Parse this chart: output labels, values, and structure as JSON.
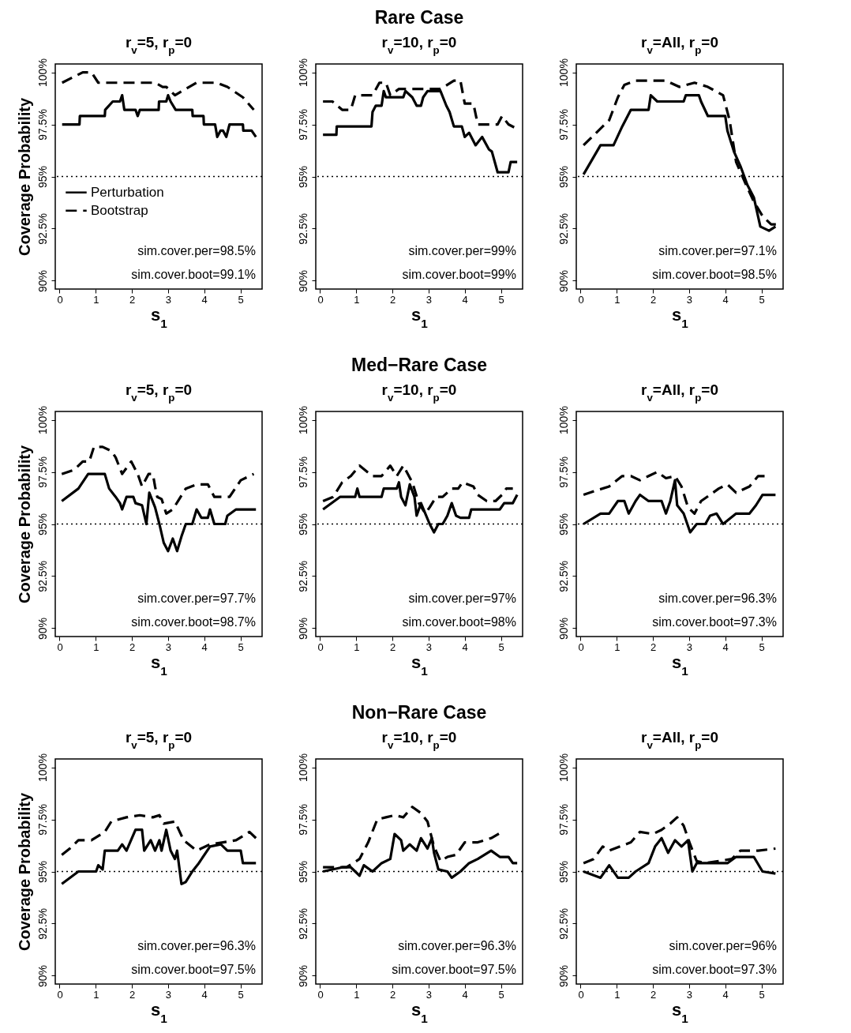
{
  "chart_data": [
    {
      "type": "line",
      "title": "r$_{v}$=5, r$_{p}$=0",
      "xlabel": "s$_{1}$",
      "ylabel": "Coverage Probability",
      "xlim": [
        -0.12,
        5.6
      ],
      "xticks": [
        0,
        1,
        2,
        3,
        4,
        5
      ],
      "ylim": [
        89.6,
        100.4
      ],
      "yticks": [
        {
          "value": 90,
          "label": "90%"
        },
        {
          "value": 92.5,
          "label": "92.5%"
        },
        {
          "value": 95,
          "label": "95%"
        },
        {
          "value": 97.5,
          "label": "97.5%"
        },
        {
          "value": 100,
          "label": "100%"
        }
      ],
      "legend": "left",
      "ref_lines": [
        {
          "axis": "y",
          "value": 95,
          "line_style": "dotted"
        }
      ],
      "annotations": [
        "sim.cover.per=98.5%",
        "sim.cover.boot=99.1%"
      ],
      "series": [
        {
          "name": "Perturbation",
          "color": "#000000",
          "line_style": "solid",
          "x": [
            0.07,
            0.55,
            0.56,
            1.25,
            1.26,
            1.47,
            1.67,
            1.73,
            1.79,
            2.1,
            2.16,
            2.22,
            2.74,
            2.75,
            2.95,
            3.0,
            3.07,
            3.21,
            3.67,
            3.68,
            3.98,
            3.99,
            4.3,
            4.36,
            4.45,
            4.52,
            4.61,
            4.7,
            5.07,
            5.08,
            5.31,
            5.43
          ],
          "values": [
            97.5,
            97.5,
            97.9,
            97.9,
            98.2,
            98.6,
            98.6,
            98.9,
            98.2,
            98.2,
            97.9,
            98.2,
            98.2,
            98.6,
            98.6,
            98.9,
            98.6,
            98.2,
            98.2,
            97.9,
            97.9,
            97.5,
            97.5,
            96.9,
            97.2,
            97.2,
            96.9,
            97.5,
            97.5,
            97.2,
            97.2,
            96.9
          ]
        },
        {
          "name": "Bootstrap",
          "color": "#000000",
          "line_style": "dashed",
          "x": [
            0.07,
            0.64,
            0.88,
            1.07,
            2.64,
            2.85,
            2.95,
            3.19,
            3.79,
            4.34,
            4.64,
            5.07,
            5.37
          ],
          "values": [
            99.5,
            100,
            100,
            99.5,
            99.5,
            99.3,
            99.3,
            98.9,
            99.5,
            99.5,
            99.3,
            98.8,
            98.2
          ]
        }
      ]
    },
    {
      "type": "line",
      "title": "Rare Case",
      "subtitle": "r$_{v}$=10, r$_{p}$=0",
      "xlabel": "s$_{1}$",
      "xlim": [
        -0.12,
        5.6
      ],
      "xticks": [
        0,
        1,
        2,
        3,
        4,
        5
      ],
      "ylim": [
        89.6,
        100.4
      ],
      "yticks": [
        {
          "value": 90,
          "label": "90%"
        },
        {
          "value": 92.5,
          "label": "92.5%"
        },
        {
          "value": 95,
          "label": "95%"
        },
        {
          "value": 97.5,
          "label": "97.5%"
        },
        {
          "value": 100,
          "label": "100%"
        }
      ],
      "ref_lines": [
        {
          "axis": "y",
          "value": 95,
          "line_style": "dotted"
        }
      ],
      "annotations": [
        "sim.cover.per=99%",
        "sim.cover.boot=99%"
      ],
      "series": [
        {
          "color": "#000000",
          "line_style": "solid",
          "x": [
            0.08,
            0.45,
            0.46,
            1.42,
            1.45,
            1.54,
            1.7,
            1.76,
            1.82,
            2.3,
            2.36,
            2.55,
            2.67,
            2.79,
            2.85,
            2.97,
            3.33,
            3.49,
            3.58,
            3.7,
            3.92,
            4.0,
            4.12,
            4.3,
            4.48,
            4.67,
            4.75,
            4.91,
            5.21,
            5.27,
            5.45
          ],
          "values": [
            97.0,
            97.0,
            97.4,
            97.4,
            98.1,
            98.4,
            98.4,
            99.1,
            98.8,
            98.8,
            99.1,
            98.8,
            98.4,
            98.4,
            98.8,
            99.1,
            99.1,
            98.4,
            98.1,
            97.4,
            97.4,
            96.9,
            97.1,
            96.5,
            96.9,
            96.3,
            96.2,
            95.2,
            95.2,
            95.7,
            95.7
          ]
        },
        {
          "color": "#000000",
          "line_style": "dashed",
          "x": [
            0.08,
            0.34,
            0.61,
            0.85,
            0.97,
            1.45,
            1.64,
            1.82,
            1.94,
            2.18,
            2.67,
            3.33,
            3.7,
            3.88,
            4.0,
            4.24,
            4.36,
            4.91,
            5.03,
            5.21,
            5.43
          ],
          "values": [
            98.6,
            98.6,
            98.2,
            98.2,
            98.9,
            98.9,
            99.5,
            99.5,
            98.9,
            99.2,
            99.2,
            99.2,
            99.6,
            99.6,
            98.5,
            98.5,
            97.5,
            97.5,
            97.9,
            97.5,
            97.3
          ]
        }
      ]
    },
    {
      "type": "line",
      "title": "r$_{v}$=All, r$_{p}$=0",
      "xlabel": "s$_{1}$",
      "xlim": [
        -0.12,
        5.6
      ],
      "xticks": [
        0,
        1,
        2,
        3,
        4,
        5
      ],
      "ylim": [
        89.6,
        100.4
      ],
      "yticks": [
        {
          "value": 90,
          "label": "90%"
        },
        {
          "value": 92.5,
          "label": "92.5%"
        },
        {
          "value": 95,
          "label": "95%"
        },
        {
          "value": 97.5,
          "label": "97.5%"
        },
        {
          "value": 100,
          "label": "100%"
        }
      ],
      "ref_lines": [
        {
          "axis": "y",
          "value": 95,
          "line_style": "dotted"
        }
      ],
      "annotations": [
        "sim.cover.per=97.1%",
        "sim.cover.boot=98.5%"
      ],
      "series": [
        {
          "color": "#000000",
          "line_style": "solid",
          "x": [
            0.08,
            0.55,
            0.91,
            1.15,
            1.39,
            1.88,
            1.94,
            2.12,
            2.85,
            2.91,
            3.27,
            3.33,
            3.52,
            4.0,
            4.06,
            4.24,
            4.42,
            4.61,
            4.79,
            4.97,
            5.21,
            5.39
          ],
          "values": [
            95.1,
            96.5,
            96.5,
            97.4,
            98.2,
            98.2,
            98.9,
            98.6,
            98.6,
            98.9,
            98.9,
            98.6,
            97.9,
            97.9,
            97.2,
            96.2,
            95.5,
            94.6,
            94.0,
            92.6,
            92.4,
            92.6
          ]
        },
        {
          "color": "#000000",
          "line_style": "dashed",
          "x": [
            0.08,
            0.61,
            0.79,
            1.03,
            1.21,
            1.52,
            2.36,
            2.73,
            3.15,
            3.52,
            3.94,
            4.12,
            4.3,
            4.55,
            4.79,
            5.03,
            5.27,
            5.49
          ],
          "values": [
            96.5,
            97.4,
            97.7,
            98.8,
            99.4,
            99.6,
            99.6,
            99.3,
            99.5,
            99.3,
            98.9,
            97.7,
            95.7,
            94.7,
            93.8,
            93.1,
            92.7,
            92.7
          ]
        }
      ]
    },
    {
      "type": "line",
      "title": "r$_{v}$=5, r$_{p}$=0",
      "xlabel": "s$_{1}$",
      "ylabel": "Coverage Probability",
      "xlim": [
        -0.12,
        5.6
      ],
      "xticks": [
        0,
        1,
        2,
        3,
        4,
        5
      ],
      "ylim": [
        89.6,
        100.4
      ],
      "yticks": [
        {
          "value": 90,
          "label": "90%"
        },
        {
          "value": 92.5,
          "label": "92.5%"
        },
        {
          "value": 95,
          "label": "95%"
        },
        {
          "value": 97.5,
          "label": "97.5%"
        },
        {
          "value": 100,
          "label": "100%"
        }
      ],
      "ref_lines": [
        {
          "axis": "y",
          "value": 95,
          "line_style": "dotted"
        }
      ],
      "annotations": [
        "sim.cover.per=97.7%",
        "sim.cover.boot=98.7%"
      ],
      "series": [
        {
          "color": "#000000",
          "line_style": "solid",
          "x": [
            0.06,
            0.52,
            0.79,
            1.25,
            1.37,
            1.55,
            1.67,
            1.73,
            1.79,
            1.85,
            2.04,
            2.1,
            2.28,
            2.4,
            2.48,
            2.64,
            2.76,
            2.88,
            3.0,
            3.13,
            3.25,
            3.37,
            3.49,
            3.67,
            3.79,
            3.92,
            4.1,
            4.16,
            4.28,
            4.58,
            4.64,
            4.88,
            5.43
          ],
          "values": [
            96.1,
            96.7,
            97.4,
            97.4,
            96.7,
            96.3,
            96.0,
            95.7,
            96.0,
            96.3,
            96.3,
            96.0,
            95.9,
            95.0,
            96.5,
            95.8,
            95.0,
            94.1,
            93.7,
            94.3,
            93.7,
            94.4,
            95.0,
            95.0,
            95.7,
            95.3,
            95.3,
            95.7,
            95.0,
            95.0,
            95.4,
            95.7,
            95.7
          ]
        },
        {
          "color": "#000000",
          "line_style": "dashed",
          "x": [
            0.06,
            0.4,
            0.64,
            0.82,
            0.95,
            1.19,
            1.43,
            1.55,
            1.73,
            1.98,
            2.16,
            2.28,
            2.46,
            2.58,
            2.64,
            2.7,
            2.82,
            2.95,
            3.13,
            3.31,
            3.49,
            3.79,
            4.1,
            4.28,
            4.7,
            5.01,
            5.37
          ],
          "values": [
            97.4,
            97.6,
            98.0,
            98.0,
            98.7,
            98.7,
            98.5,
            98.2,
            97.4,
            98.0,
            97.4,
            96.8,
            97.4,
            97.4,
            96.8,
            96.3,
            96.2,
            95.5,
            95.7,
            96.2,
            96.7,
            96.9,
            96.9,
            96.3,
            96.3,
            97.1,
            97.4
          ]
        }
      ]
    },
    {
      "type": "line",
      "title": "Med−Rare Case",
      "subtitle": "r$_{v}$=10, r$_{p}$=0",
      "xlabel": "s$_{1}$",
      "xlim": [
        -0.12,
        5.6
      ],
      "xticks": [
        0,
        1,
        2,
        3,
        4,
        5
      ],
      "ylim": [
        89.6,
        100.4
      ],
      "yticks": [
        {
          "value": 90,
          "label": "90%"
        },
        {
          "value": 92.5,
          "label": "92.5%"
        },
        {
          "value": 95,
          "label": "95%"
        },
        {
          "value": 97.5,
          "label": "97.5%"
        },
        {
          "value": 100,
          "label": "100%"
        }
      ],
      "ref_lines": [
        {
          "axis": "y",
          "value": 95,
          "line_style": "dotted"
        }
      ],
      "annotations": [
        "sim.cover.per=97%",
        "sim.cover.boot=98%"
      ],
      "series": [
        {
          "color": "#000000",
          "line_style": "solid",
          "x": [
            0.08,
            0.55,
            0.97,
            1.03,
            1.09,
            1.7,
            1.76,
            2.12,
            2.18,
            2.24,
            2.36,
            2.48,
            2.61,
            2.67,
            2.79,
            2.91,
            3.03,
            3.15,
            3.27,
            3.39,
            3.52,
            3.64,
            3.76,
            3.88,
            4.12,
            4.18,
            4.97,
            5.09,
            5.33,
            5.45
          ],
          "values": [
            95.7,
            96.3,
            96.3,
            96.7,
            96.3,
            96.3,
            96.7,
            96.7,
            97.0,
            96.3,
            95.9,
            96.9,
            96.3,
            95.4,
            96.0,
            95.5,
            95.0,
            94.6,
            95.0,
            95.0,
            95.4,
            96.0,
            95.4,
            95.3,
            95.3,
            95.7,
            95.7,
            96.0,
            96.0,
            96.4
          ]
        },
        {
          "color": "#000000",
          "line_style": "dashed",
          "x": [
            0.08,
            0.36,
            0.61,
            0.85,
            1.09,
            1.45,
            1.7,
            1.94,
            2.12,
            2.3,
            2.55,
            2.73,
            2.91,
            3.03,
            3.21,
            3.39,
            3.64,
            3.82,
            3.94,
            4.24,
            4.36,
            4.61,
            4.85,
            5.03,
            5.15,
            5.33
          ],
          "values": [
            96.1,
            96.3,
            97.0,
            97.3,
            97.8,
            97.3,
            97.3,
            97.8,
            97.3,
            97.8,
            97.0,
            96.0,
            95.5,
            95.8,
            96.3,
            96.3,
            96.7,
            96.7,
            97.0,
            96.8,
            96.4,
            96.1,
            96.1,
            96.4,
            96.7,
            96.7
          ]
        }
      ]
    },
    {
      "type": "line",
      "title": "r$_{v}$=All, r$_{p}$=0",
      "xlabel": "s$_{1}$",
      "xlim": [
        -0.12,
        5.6
      ],
      "xticks": [
        0,
        1,
        2,
        3,
        4,
        5
      ],
      "ylim": [
        89.6,
        100.4
      ],
      "yticks": [
        {
          "value": 90,
          "label": "90%"
        },
        {
          "value": 92.5,
          "label": "92.5%"
        },
        {
          "value": 95,
          "label": "95%"
        },
        {
          "value": 97.5,
          "label": "97.5%"
        },
        {
          "value": 100,
          "label": "100%"
        }
      ],
      "ref_lines": [
        {
          "axis": "y",
          "value": 95,
          "line_style": "dotted"
        }
      ],
      "annotations": [
        "sim.cover.per=96.3%",
        "sim.cover.boot=97.3%"
      ],
      "series": [
        {
          "color": "#000000",
          "line_style": "solid",
          "x": [
            0.08,
            0.55,
            0.79,
            0.91,
            1.03,
            1.21,
            1.33,
            1.52,
            1.64,
            1.88,
            2.24,
            2.36,
            2.48,
            2.61,
            2.67,
            2.85,
            3.03,
            3.21,
            3.45,
            3.58,
            3.76,
            3.94,
            4.3,
            4.67,
            4.85,
            5.03,
            5.39
          ],
          "values": [
            95.0,
            95.5,
            95.5,
            95.8,
            96.1,
            96.1,
            95.5,
            96.1,
            96.4,
            96.1,
            96.1,
            95.5,
            96.1,
            97.1,
            95.9,
            95.5,
            94.6,
            95.0,
            95.0,
            95.4,
            95.5,
            95.0,
            95.5,
            95.5,
            95.9,
            96.4,
            96.4
          ]
        },
        {
          "color": "#000000",
          "line_style": "dashed",
          "x": [
            0.08,
            0.42,
            0.79,
            1.15,
            1.39,
            1.64,
            1.88,
            2.12,
            2.36,
            2.61,
            2.79,
            2.97,
            3.15,
            3.33,
            3.58,
            3.82,
            4.06,
            4.3,
            4.67,
            4.91,
            5.15
          ],
          "values": [
            96.4,
            96.6,
            96.8,
            97.3,
            97.3,
            97.1,
            97.3,
            97.5,
            97.2,
            97.3,
            96.8,
            95.8,
            95.5,
            96.1,
            96.4,
            96.7,
            96.9,
            96.5,
            96.8,
            97.3,
            97.3
          ]
        }
      ]
    },
    {
      "type": "line",
      "title": "r$_{v}$=5, r$_{p}$=0",
      "xlabel": "s$_{1}$",
      "ylabel": "Coverage Probability",
      "xlim": [
        -0.12,
        5.6
      ],
      "xticks": [
        0,
        1,
        2,
        3,
        4,
        5
      ],
      "ylim": [
        89.6,
        100.4
      ],
      "yticks": [
        {
          "value": 90,
          "label": "90%"
        },
        {
          "value": 92.5,
          "label": "92.5%"
        },
        {
          "value": 95,
          "label": "95%"
        },
        {
          "value": 97.5,
          "label": "97.5%"
        },
        {
          "value": 100,
          "label": "100%"
        }
      ],
      "ref_lines": [
        {
          "axis": "y",
          "value": 95,
          "line_style": "dotted"
        }
      ],
      "annotations": [
        "sim.cover.per=96.3%",
        "sim.cover.boot=97.5%"
      ],
      "series": [
        {
          "color": "#000000",
          "line_style": "solid",
          "x": [
            0.06,
            0.52,
            1.01,
            1.07,
            1.19,
            1.25,
            1.61,
            1.73,
            1.85,
            2.1,
            2.28,
            2.34,
            2.52,
            2.64,
            2.76,
            2.82,
            2.95,
            3.07,
            3.19,
            3.25,
            3.37,
            3.49,
            3.67,
            3.85,
            4.16,
            4.46,
            4.64,
            5.01,
            5.07,
            5.43
          ],
          "values": [
            94.4,
            95.0,
            95.0,
            95.3,
            95.1,
            96.0,
            96.0,
            96.3,
            96.0,
            97.0,
            97.0,
            96.0,
            96.5,
            96.0,
            96.5,
            96.0,
            97.0,
            96.0,
            95.6,
            96.0,
            94.4,
            94.5,
            95.0,
            95.4,
            96.2,
            96.3,
            96.0,
            96.0,
            95.4,
            95.4
          ]
        },
        {
          "color": "#000000",
          "line_style": "dashed",
          "x": [
            0.06,
            0.28,
            0.52,
            0.88,
            1.25,
            1.43,
            1.85,
            2.22,
            2.58,
            2.76,
            2.88,
            3.19,
            3.43,
            3.79,
            4.16,
            4.52,
            4.88,
            5.25,
            5.43
          ],
          "values": [
            95.8,
            96.1,
            96.5,
            96.5,
            96.9,
            97.4,
            97.6,
            97.7,
            97.6,
            97.7,
            97.3,
            97.4,
            96.5,
            96.0,
            96.3,
            96.4,
            96.5,
            96.9,
            96.6
          ]
        }
      ]
    },
    {
      "type": "line",
      "title": "Non−Rare Case",
      "subtitle": "r$_{v}$=10, r$_{p}$=0",
      "xlabel": "s$_{1}$",
      "xlim": [
        -0.12,
        5.6
      ],
      "xticks": [
        0,
        1,
        2,
        3,
        4,
        5
      ],
      "ylim": [
        89.6,
        100.4
      ],
      "yticks": [
        {
          "value": 90,
          "label": "90%"
        },
        {
          "value": 92.5,
          "label": "92.5%"
        },
        {
          "value": 95,
          "label": "95%"
        },
        {
          "value": 97.5,
          "label": "97.5%"
        },
        {
          "value": 100,
          "label": "100%"
        }
      ],
      "ref_lines": [
        {
          "axis": "y",
          "value": 95,
          "line_style": "dotted"
        }
      ],
      "annotations": [
        "sim.cover.per=96.3%",
        "sim.cover.boot=97.5%"
      ],
      "series": [
        {
          "color": "#000000",
          "line_style": "solid",
          "x": [
            0.08,
            0.61,
            0.85,
            1.09,
            1.21,
            1.45,
            1.7,
            1.94,
            2.06,
            2.24,
            2.3,
            2.48,
            2.67,
            2.79,
            2.97,
            3.09,
            3.15,
            3.27,
            3.52,
            3.64,
            3.88,
            4.12,
            4.36,
            4.73,
            4.97,
            5.21,
            5.33,
            5.45
          ],
          "values": [
            95.0,
            95.2,
            95.2,
            94.8,
            95.3,
            95.0,
            95.4,
            95.6,
            96.8,
            96.5,
            96.0,
            96.3,
            96.0,
            96.6,
            96.1,
            96.6,
            95.9,
            95.1,
            95.0,
            94.7,
            95.0,
            95.4,
            95.6,
            96.0,
            95.7,
            95.7,
            95.4,
            95.4
          ]
        },
        {
          "color": "#000000",
          "line_style": "dashed",
          "x": [
            0.08,
            0.73,
            1.09,
            1.33,
            1.58,
            1.82,
            2.06,
            2.3,
            2.55,
            2.79,
            2.97,
            3.15,
            3.33,
            3.52,
            3.76,
            4.0,
            4.36,
            4.73,
            5.03
          ],
          "values": [
            95.2,
            95.2,
            95.6,
            96.4,
            97.5,
            97.6,
            97.7,
            97.6,
            98.1,
            97.8,
            97.4,
            96.2,
            95.5,
            95.7,
            95.8,
            96.4,
            96.4,
            96.6,
            96.9
          ]
        }
      ]
    },
    {
      "type": "line",
      "title": "r$_{v}$=All, r$_{p}$=0",
      "xlabel": "s$_{1}$",
      "xlim": [
        -0.12,
        5.6
      ],
      "xticks": [
        0,
        1,
        2,
        3,
        4,
        5
      ],
      "ylim": [
        89.6,
        100.4
      ],
      "yticks": [
        {
          "value": 90,
          "label": "90%"
        },
        {
          "value": 92.5,
          "label": "92.5%"
        },
        {
          "value": 95,
          "label": "95%"
        },
        {
          "value": 97.5,
          "label": "97.5%"
        },
        {
          "value": 100,
          "label": "100%"
        }
      ],
      "ref_lines": [
        {
          "axis": "y",
          "value": 95,
          "line_style": "dotted"
        }
      ],
      "annotations": [
        "sim.cover.per=96%",
        "sim.cover.boot=97.3%"
      ],
      "series": [
        {
          "color": "#000000",
          "line_style": "solid",
          "x": [
            0.08,
            0.55,
            0.79,
            1.03,
            1.33,
            1.52,
            1.88,
            2.06,
            2.24,
            2.42,
            2.61,
            2.79,
            2.97,
            3.09,
            3.21,
            4.06,
            4.3,
            4.79,
            5.03,
            5.39
          ],
          "values": [
            95.0,
            94.7,
            95.3,
            94.7,
            94.7,
            95.0,
            95.4,
            96.2,
            96.6,
            95.9,
            96.5,
            96.2,
            96.5,
            95.0,
            95.4,
            95.4,
            95.7,
            95.7,
            95.0,
            94.9
          ]
        },
        {
          "color": "#000000",
          "line_style": "dashed",
          "x": [
            0.08,
            0.36,
            0.61,
            0.79,
            1.39,
            1.64,
            2.0,
            2.24,
            2.48,
            2.67,
            2.85,
            3.03,
            3.21,
            3.45,
            4.18,
            4.42,
            4.91,
            5.39
          ],
          "values": [
            95.4,
            95.6,
            96.2,
            96.0,
            96.4,
            96.9,
            96.8,
            97.0,
            97.3,
            97.6,
            97.2,
            96.3,
            95.5,
            95.4,
            95.6,
            96.0,
            96.0,
            96.1
          ]
        }
      ]
    }
  ]
}
